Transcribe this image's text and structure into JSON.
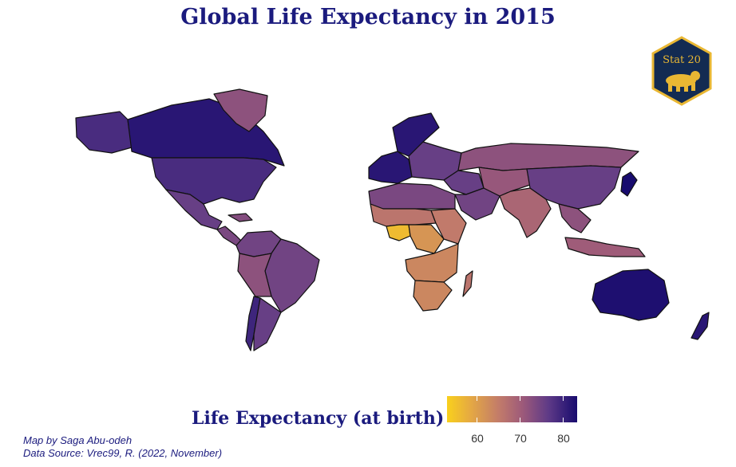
{
  "title": "Global Life Expectancy in 2015",
  "logo": {
    "text": "Stat 20",
    "fill": "#132b52",
    "stroke": "#e9b733"
  },
  "legend": {
    "title": "Life Expectancy (at birth)",
    "ticks": [
      "60",
      "70",
      "80"
    ],
    "scale_min": 50.5,
    "scale_max": 83.6,
    "colors": [
      "#f9d01c",
      "#e5a943",
      "#c27b6a",
      "#9d5a7a",
      "#5e3a87",
      "#180b6e"
    ]
  },
  "credits": {
    "author": "Map by Saga Abu-odeh",
    "source": "Data Source: Vrec99, R. (2022, November)"
  },
  "regions": [
    {
      "id": "canada",
      "v": 82
    },
    {
      "id": "greenland",
      "v": 72
    },
    {
      "id": "alaska",
      "v": 79
    },
    {
      "id": "usa",
      "v": 79
    },
    {
      "id": "mexico",
      "v": 76
    },
    {
      "id": "central-america",
      "v": 74
    },
    {
      "id": "caribbean",
      "v": 73
    },
    {
      "id": "colombia-venezuela",
      "v": 75
    },
    {
      "id": "brazil",
      "v": 75
    },
    {
      "id": "peru-bolivia",
      "v": 72
    },
    {
      "id": "chile",
      "v": 80
    },
    {
      "id": "argentina",
      "v": 76
    },
    {
      "id": "western-europe",
      "v": 82
    },
    {
      "id": "scandinavia",
      "v": 82
    },
    {
      "id": "eastern-europe",
      "v": 76
    },
    {
      "id": "russia",
      "v": 72
    },
    {
      "id": "turkey-middle-east",
      "v": 76
    },
    {
      "id": "north-africa",
      "v": 74
    },
    {
      "id": "sahel",
      "v": 65
    },
    {
      "id": "nigeria",
      "v": 54
    },
    {
      "id": "central-africa",
      "v": 60
    },
    {
      "id": "east-africa",
      "v": 64
    },
    {
      "id": "southern-africa",
      "v": 62
    },
    {
      "id": "south-africa",
      "v": 62
    },
    {
      "id": "iran-arabia",
      "v": 75
    },
    {
      "id": "india",
      "v": 68
    },
    {
      "id": "central-asia",
      "v": 71
    },
    {
      "id": "china",
      "v": 76
    },
    {
      "id": "southeast-asia",
      "v": 72
    },
    {
      "id": "indonesia",
      "v": 70
    },
    {
      "id": "japan",
      "v": 84
    },
    {
      "id": "australia",
      "v": 83
    },
    {
      "id": "new-zealand",
      "v": 82
    },
    {
      "id": "madagascar",
      "v": 65
    }
  ]
}
